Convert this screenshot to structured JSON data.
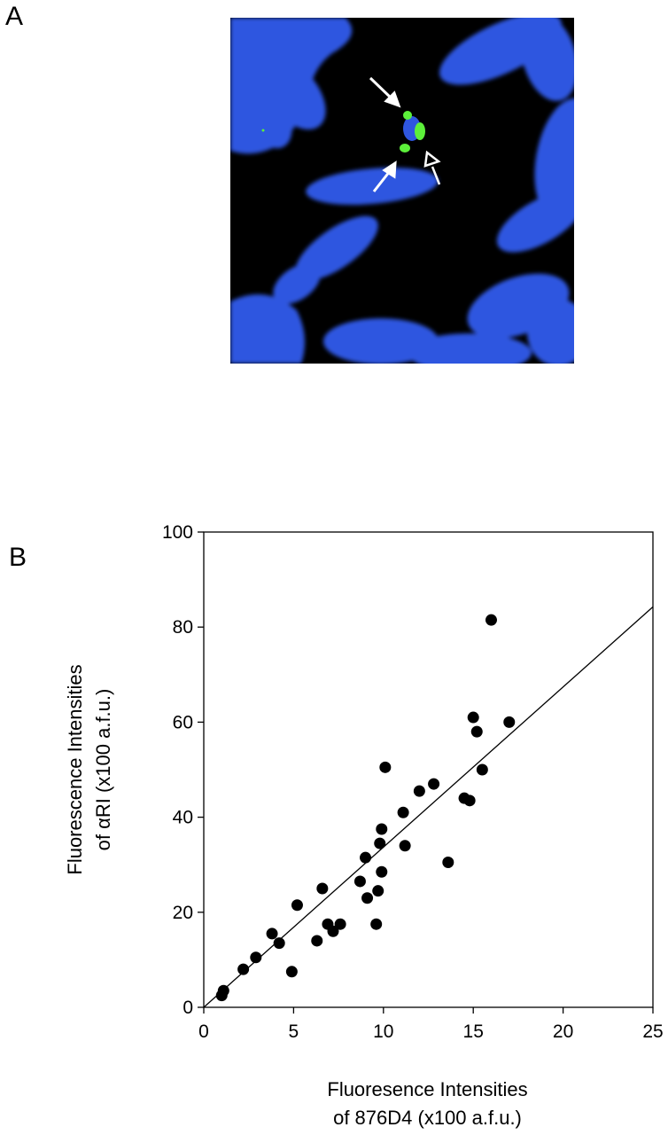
{
  "panels": {
    "a_label": "A",
    "b_label": "B"
  },
  "micrograph": {
    "background_color": "#000000",
    "chromosome_color": "#2f56e0",
    "signal_color": "#5cf03a",
    "arrow_color": "#ffffff"
  },
  "chart_data": {
    "type": "scatter",
    "title": "",
    "xlabel_line1": "Fluoresence Intensities",
    "xlabel_line2": "of 876D4 (x100 a.f.u.)",
    "ylabel_line1": "Fluorescence Intensities",
    "ylabel_line2": "of αRI (x100 a.f.u.)",
    "xlim": [
      0,
      25
    ],
    "ylim": [
      0,
      100
    ],
    "x_ticks": [
      0,
      5,
      10,
      15,
      20,
      25
    ],
    "y_ticks": [
      0,
      20,
      40,
      60,
      80,
      100
    ],
    "grid": false,
    "legend": "none",
    "marker_color": "#000000",
    "trendline": {
      "slope": 3.37,
      "intercept": 0
    },
    "points": [
      {
        "x": 1.0,
        "y": 2.5
      },
      {
        "x": 1.1,
        "y": 3.5
      },
      {
        "x": 2.2,
        "y": 8.0
      },
      {
        "x": 2.9,
        "y": 10.5
      },
      {
        "x": 3.8,
        "y": 15.5
      },
      {
        "x": 4.2,
        "y": 13.5
      },
      {
        "x": 4.9,
        "y": 7.5
      },
      {
        "x": 5.2,
        "y": 21.5
      },
      {
        "x": 6.3,
        "y": 14.0
      },
      {
        "x": 6.6,
        "y": 25.0
      },
      {
        "x": 6.9,
        "y": 17.5
      },
      {
        "x": 7.2,
        "y": 16.0
      },
      {
        "x": 7.6,
        "y": 17.5
      },
      {
        "x": 8.7,
        "y": 26.5
      },
      {
        "x": 9.0,
        "y": 31.5
      },
      {
        "x": 9.1,
        "y": 23.0
      },
      {
        "x": 9.6,
        "y": 17.5
      },
      {
        "x": 9.7,
        "y": 24.5
      },
      {
        "x": 9.8,
        "y": 34.5
      },
      {
        "x": 9.9,
        "y": 28.5
      },
      {
        "x": 9.9,
        "y": 37.5
      },
      {
        "x": 10.1,
        "y": 50.5
      },
      {
        "x": 11.1,
        "y": 41.0
      },
      {
        "x": 11.2,
        "y": 34.0
      },
      {
        "x": 12.0,
        "y": 45.5
      },
      {
        "x": 12.8,
        "y": 47.0
      },
      {
        "x": 13.6,
        "y": 30.5
      },
      {
        "x": 14.5,
        "y": 44.0
      },
      {
        "x": 14.8,
        "y": 43.5
      },
      {
        "x": 15.0,
        "y": 61.0
      },
      {
        "x": 15.2,
        "y": 58.0
      },
      {
        "x": 15.5,
        "y": 50.0
      },
      {
        "x": 16.0,
        "y": 81.5
      },
      {
        "x": 17.0,
        "y": 60.0
      }
    ]
  }
}
